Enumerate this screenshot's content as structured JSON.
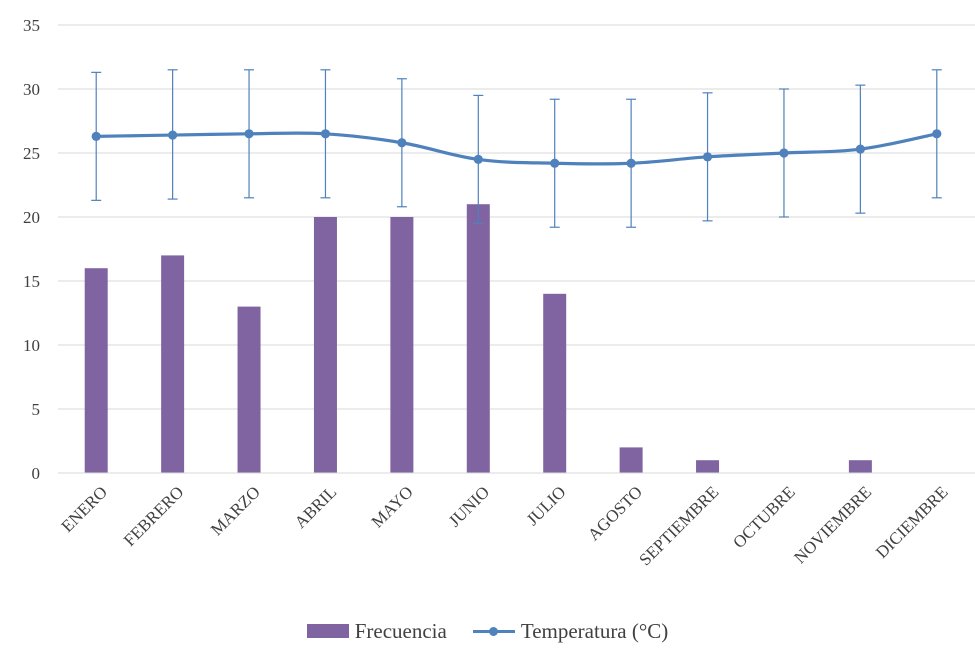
{
  "chart_data": {
    "type": "bar",
    "categories": [
      "ENERO",
      "FEBRERO",
      "MARZO",
      "ABRIL",
      "MAYO",
      "JUNIO",
      "JULIO",
      "AGOSTO",
      "SEPTIEMBRE",
      "OCTUBRE",
      "NOVIEMBRE",
      "DICIEMBRE"
    ],
    "series": [
      {
        "name": "Frecuencia",
        "type": "bar",
        "color": "#8064a2",
        "values": [
          16,
          17,
          13,
          20,
          20,
          21,
          14,
          2,
          1,
          0,
          1,
          0
        ]
      },
      {
        "name": "Temperatura (°C)",
        "type": "line",
        "color": "#4f81bd",
        "values": [
          26.3,
          26.4,
          26.5,
          26.5,
          25.8,
          24.5,
          24.2,
          24.2,
          24.7,
          25.0,
          25.3,
          26.5
        ],
        "error_upper": [
          31.3,
          31.5,
          31.5,
          31.5,
          30.8,
          29.5,
          29.2,
          29.2,
          29.7,
          30.0,
          30.3,
          31.5
        ],
        "error_lower": [
          21.3,
          21.4,
          21.5,
          21.5,
          20.8,
          19.5,
          19.2,
          19.2,
          19.7,
          20.0,
          20.3,
          21.5
        ]
      }
    ],
    "ylim": [
      0,
      35
    ],
    "yticks": [
      "0",
      "5",
      "10",
      "15",
      "20",
      "25",
      "30",
      "35"
    ],
    "grid": true,
    "legend": "bottom"
  }
}
